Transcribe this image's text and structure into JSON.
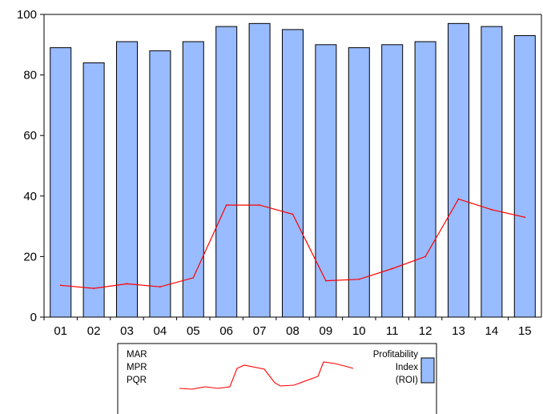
{
  "chart_data": {
    "type": "bar",
    "categories": [
      "01",
      "02",
      "03",
      "04",
      "05",
      "06",
      "07",
      "08",
      "09",
      "10",
      "11",
      "12",
      "13",
      "14",
      "15"
    ],
    "series": [
      {
        "name": "Profitability Index (ROI)",
        "kind": "bar",
        "color": "#99bbff",
        "values": [
          89,
          84,
          91,
          88,
          91,
          96,
          97,
          95,
          90,
          89,
          90,
          91,
          97,
          96,
          93
        ]
      },
      {
        "kind": "line",
        "color": "#ff0000",
        "values": [
          10.5,
          9.5,
          11,
          10,
          13,
          37,
          37,
          34,
          12,
          12.5,
          16,
          20,
          39,
          35.5,
          33
        ]
      }
    ],
    "ylim": [
      0,
      100
    ],
    "yticks": [
      0,
      20,
      40,
      60,
      80,
      100
    ],
    "title": "",
    "xlabel": "",
    "ylabel": "",
    "legend": {
      "placement": "bottom",
      "left_labels": [
        "MAR",
        "MPR",
        "PQR"
      ],
      "bar_label_lines": [
        "Profitability",
        "Index",
        "(ROI)"
      ]
    }
  }
}
